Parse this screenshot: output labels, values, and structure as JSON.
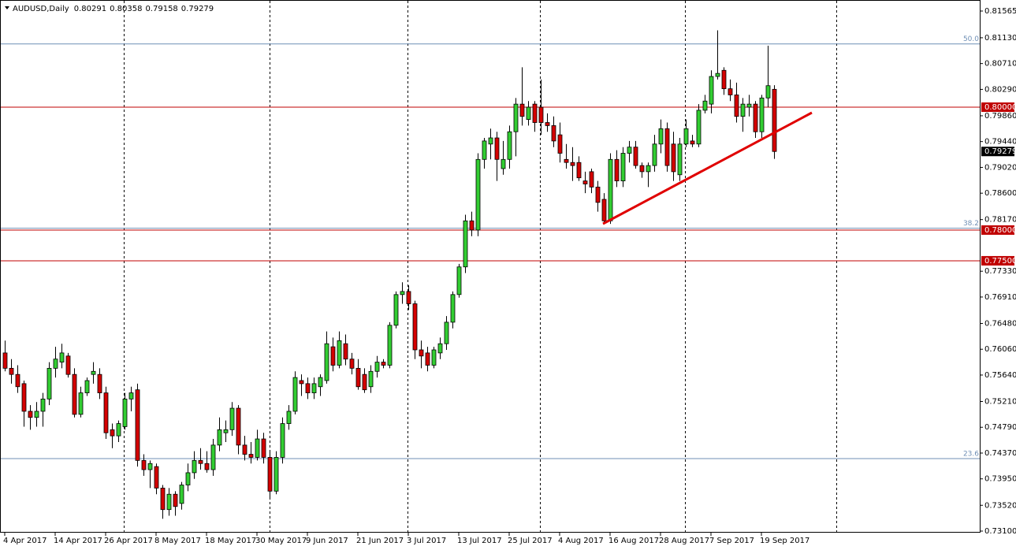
{
  "chart_data": {
    "type": "candlestick",
    "title": "AUDUSD,Daily",
    "categories": [
      "4 Apr 2017",
      null,
      null,
      null,
      null,
      null,
      null,
      null,
      "14 Apr 2017",
      null,
      null,
      null,
      null,
      null,
      null,
      null,
      "26 Apr 2017",
      null,
      null,
      null,
      null,
      null,
      null,
      null,
      "8 May 2017",
      null,
      null,
      null,
      null,
      null,
      null,
      null,
      "18 May 2017",
      null,
      null,
      null,
      null,
      null,
      null,
      null,
      "30 May 2017",
      null,
      null,
      null,
      null,
      null,
      null,
      null,
      "9 Jun 2017",
      null,
      null,
      null,
      null,
      null,
      null,
      null,
      "21 Jun 2017",
      null,
      null,
      null,
      null,
      null,
      null,
      null,
      "3 Jul 2017",
      null,
      null,
      null,
      null,
      null,
      null,
      null,
      "13 Jul 2017",
      null,
      null,
      null,
      null,
      null,
      null,
      null,
      "25 Jul 2017",
      null,
      null,
      null,
      null,
      null,
      null,
      null,
      "4 Aug 2017",
      null,
      null,
      null,
      null,
      null,
      null,
      null,
      "16 Aug 2017",
      null,
      null,
      null,
      null,
      null,
      null,
      null,
      "28 Aug 2017",
      null,
      null,
      null,
      null,
      null,
      null,
      null,
      "7 Sep 2017",
      null,
      null,
      null,
      null,
      null,
      null,
      null,
      "19 Sep 2017",
      null,
      null
    ],
    "series": {
      "up_color": "#32cd32",
      "down_color": "#d40000",
      "open": [
        0.76,
        0.7575,
        0.7565,
        0.755,
        0.7505,
        0.7495,
        0.7505,
        0.7525,
        0.7575,
        0.7585,
        0.7595,
        0.7565,
        0.75,
        0.7535,
        0.7565,
        0.7565,
        0.7535,
        0.7475,
        0.7465,
        0.748,
        0.7525,
        0.754,
        0.7425,
        0.741,
        0.7415,
        0.738,
        0.7345,
        0.737,
        0.7355,
        0.7385,
        0.7405,
        0.7425,
        0.742,
        0.741,
        0.745,
        0.747,
        0.7475,
        0.751,
        0.745,
        0.7435,
        0.743,
        0.746,
        0.743,
        0.7375,
        0.743,
        0.7485,
        0.7505,
        0.7555,
        0.755,
        0.7535,
        0.7545,
        0.7555,
        0.761,
        0.758,
        0.7615,
        0.759,
        0.7575,
        0.7565,
        0.7545,
        0.757,
        0.7585,
        0.758,
        0.7645,
        0.7695,
        0.77,
        0.768,
        0.7605,
        0.76,
        0.758,
        0.76,
        0.7615,
        0.765,
        0.7695,
        0.774,
        0.7815,
        0.78,
        0.7915,
        0.794,
        0.795,
        0.79,
        0.7915,
        0.796,
        0.8005,
        0.798,
        0.8005,
        0.8,
        0.7975,
        0.797,
        0.7955,
        0.7915,
        0.791,
        0.791,
        0.788,
        0.7895,
        0.787,
        0.785,
        0.7815,
        0.7915,
        0.788,
        0.7925,
        0.7935,
        0.7905,
        0.7895,
        0.7905,
        0.794,
        0.7965,
        0.794,
        0.789,
        0.794,
        0.7945,
        0.794,
        0.7995,
        0.8005,
        0.805,
        0.806,
        0.803,
        0.802,
        0.7985,
        0.8,
        0.8005,
        0.796,
        0.8015,
        0.80291
      ],
      "high": [
        0.762,
        0.759,
        0.758,
        0.7555,
        0.7515,
        0.752,
        0.7535,
        0.7585,
        0.761,
        0.7615,
        0.76,
        0.7575,
        0.7545,
        0.756,
        0.7585,
        0.7575,
        0.7545,
        0.7485,
        0.749,
        0.7535,
        0.7545,
        0.755,
        0.7435,
        0.7425,
        0.742,
        0.7385,
        0.738,
        0.7375,
        0.739,
        0.742,
        0.744,
        0.7445,
        0.744,
        0.746,
        0.7495,
        0.749,
        0.752,
        0.7515,
        0.7465,
        0.7455,
        0.7475,
        0.747,
        0.744,
        0.744,
        0.7495,
        0.7515,
        0.757,
        0.7565,
        0.756,
        0.756,
        0.7565,
        0.7635,
        0.7625,
        0.7635,
        0.763,
        0.76,
        0.759,
        0.7575,
        0.758,
        0.7595,
        0.759,
        0.765,
        0.77,
        0.7715,
        0.771,
        0.7685,
        0.762,
        0.761,
        0.761,
        0.7625,
        0.766,
        0.77,
        0.7745,
        0.7825,
        0.783,
        0.7925,
        0.795,
        0.7965,
        0.796,
        0.7945,
        0.797,
        0.8015,
        0.8065,
        0.801,
        0.801,
        0.8045,
        0.799,
        0.7985,
        0.7975,
        0.794,
        0.7935,
        0.792,
        0.7895,
        0.79,
        0.788,
        0.786,
        0.7925,
        0.793,
        0.7935,
        0.7945,
        0.7945,
        0.791,
        0.791,
        0.7955,
        0.798,
        0.7975,
        0.796,
        0.795,
        0.798,
        0.7955,
        0.8005,
        0.802,
        0.806,
        0.8125,
        0.8065,
        0.8045,
        0.804,
        0.8015,
        0.802,
        0.801,
        0.802,
        0.81,
        0.80358
      ],
      "low": [
        0.757,
        0.755,
        0.7535,
        0.748,
        0.7475,
        0.748,
        0.748,
        0.7515,
        0.756,
        0.7575,
        0.756,
        0.7495,
        0.7495,
        0.753,
        0.755,
        0.7525,
        0.746,
        0.7445,
        0.7455,
        0.7475,
        0.7505,
        0.7415,
        0.74,
        0.738,
        0.737,
        0.733,
        0.7335,
        0.7335,
        0.7345,
        0.7375,
        0.7395,
        0.741,
        0.7405,
        0.74,
        0.744,
        0.7455,
        0.7465,
        0.7435,
        0.7425,
        0.742,
        0.7425,
        0.742,
        0.7365,
        0.737,
        0.742,
        0.7475,
        0.75,
        0.753,
        0.7525,
        0.7525,
        0.753,
        0.755,
        0.757,
        0.7575,
        0.758,
        0.7565,
        0.754,
        0.7535,
        0.7535,
        0.756,
        0.7575,
        0.7575,
        0.764,
        0.768,
        0.767,
        0.759,
        0.7575,
        0.757,
        0.7575,
        0.759,
        0.7605,
        0.764,
        0.769,
        0.773,
        0.779,
        0.779,
        0.79,
        0.7915,
        0.788,
        0.789,
        0.79,
        0.792,
        0.797,
        0.797,
        0.796,
        0.7955,
        0.796,
        0.7935,
        0.791,
        0.79,
        0.788,
        0.788,
        0.786,
        0.786,
        0.783,
        0.781,
        0.781,
        0.787,
        0.787,
        0.791,
        0.79,
        0.7885,
        0.787,
        0.7895,
        0.7925,
        0.7895,
        0.788,
        0.788,
        0.7935,
        0.7935,
        0.7935,
        0.799,
        0.799,
        0.8045,
        0.802,
        0.801,
        0.7975,
        0.796,
        0.7985,
        0.795,
        0.795,
        0.8,
        0.79158
      ],
      "close": [
        0.7575,
        0.7565,
        0.7545,
        0.7505,
        0.7495,
        0.7505,
        0.7525,
        0.7575,
        0.759,
        0.76,
        0.7565,
        0.75,
        0.7535,
        0.7555,
        0.757,
        0.7535,
        0.747,
        0.7465,
        0.7485,
        0.7525,
        0.7535,
        0.7425,
        0.741,
        0.742,
        0.738,
        0.7345,
        0.737,
        0.735,
        0.7385,
        0.7405,
        0.7425,
        0.742,
        0.741,
        0.745,
        0.7475,
        0.7475,
        0.751,
        0.745,
        0.7435,
        0.743,
        0.746,
        0.743,
        0.7375,
        0.743,
        0.7485,
        0.7505,
        0.756,
        0.755,
        0.7535,
        0.755,
        0.756,
        0.7615,
        0.758,
        0.762,
        0.759,
        0.7575,
        0.7545,
        0.754,
        0.757,
        0.7585,
        0.758,
        0.7645,
        0.7695,
        0.77,
        0.768,
        0.7605,
        0.7595,
        0.758,
        0.7605,
        0.7615,
        0.765,
        0.7695,
        0.774,
        0.7815,
        0.78,
        0.7915,
        0.7945,
        0.795,
        0.7915,
        0.7915,
        0.796,
        0.8005,
        0.7985,
        0.8,
        0.7975,
        0.7975,
        0.797,
        0.7945,
        0.7925,
        0.791,
        0.7905,
        0.7885,
        0.7875,
        0.787,
        0.7845,
        0.7815,
        0.7915,
        0.788,
        0.7925,
        0.7935,
        0.7905,
        0.7895,
        0.7905,
        0.794,
        0.7965,
        0.7905,
        0.7895,
        0.794,
        0.7965,
        0.794,
        0.7995,
        0.801,
        0.805,
        0.8055,
        0.803,
        0.802,
        0.7985,
        0.8005,
        0.8005,
        0.796,
        0.8015,
        0.8035,
        0.79279
      ]
    },
    "ylim": [
      0.731,
      0.81565
    ],
    "yticks": [
      {
        "value": 0.81565,
        "label": "0.81565"
      },
      {
        "value": 0.8113,
        "label": "0.81130"
      },
      {
        "value": 0.8071,
        "label": "0.80710"
      },
      {
        "value": 0.8029,
        "label": "0.80290"
      },
      {
        "value": 0.7986,
        "label": "0.79860"
      },
      {
        "value": 0.7944,
        "label": "0.79440"
      },
      {
        "value": 0.7902,
        "label": "0.79020"
      },
      {
        "value": 0.786,
        "label": "0.78600"
      },
      {
        "value": 0.7817,
        "label": "0.78170"
      },
      {
        "value": 0.7733,
        "label": "0.77330"
      },
      {
        "value": 0.7691,
        "label": "0.76910"
      },
      {
        "value": 0.7648,
        "label": "0.76480"
      },
      {
        "value": 0.7606,
        "label": "0.76060"
      },
      {
        "value": 0.7564,
        "label": "0.75640"
      },
      {
        "value": 0.7521,
        "label": "0.75210"
      },
      {
        "value": 0.7479,
        "label": "0.74790"
      },
      {
        "value": 0.7437,
        "label": "0.74370"
      },
      {
        "value": 0.7395,
        "label": "0.73950"
      },
      {
        "value": 0.7352,
        "label": "0.73520"
      },
      {
        "value": 0.731,
        "label": "0.73100"
      }
    ],
    "fib_levels": [
      {
        "value": 0.8103,
        "label": "50.0"
      },
      {
        "value": 0.7803,
        "label": "38.2"
      },
      {
        "value": 0.7428,
        "label": "23.6"
      }
    ],
    "fib_color": "#6f8fb5",
    "price_lines": [
      {
        "value": 0.8,
        "label": "0.80000"
      },
      {
        "value": 0.78,
        "label": "0.78000"
      },
      {
        "value": 0.775,
        "label": "0.77500"
      }
    ],
    "price_line_color": "#c00000"
  }
}
